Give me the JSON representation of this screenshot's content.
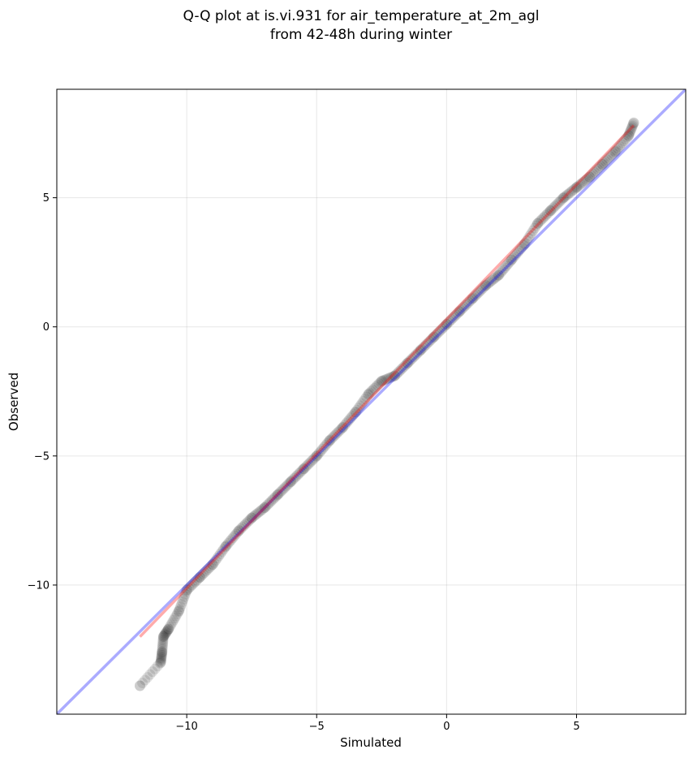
{
  "chart_data": {
    "type": "scatter",
    "title": "Q-Q plot at is.vi.931 for air_temperature_at_2m_agl",
    "subtitle": "from 42-48h during winter",
    "xlabel": "Simulated",
    "ylabel": "Observed",
    "xlim": [
      -15,
      9.2
    ],
    "ylim": [
      -15,
      9.2
    ],
    "x_ticks": [
      -10,
      -5,
      0,
      5
    ],
    "y_ticks": [
      -10,
      -5,
      0,
      5
    ],
    "x_tick_labels": [
      "−10",
      "−5",
      "0",
      "5"
    ],
    "y_tick_labels": [
      "−10",
      "−5",
      "0",
      "5"
    ],
    "grid": true,
    "quantile_anchors": {
      "x": [
        -11.8,
        -11.0,
        -10.95,
        -10.9,
        -10.7,
        -10.3,
        -10.0,
        -9.5,
        -9.0,
        -8.5,
        -8.0,
        -7.5,
        -7.0,
        -6.5,
        -6.0,
        -5.5,
        -5.0,
        -4.5,
        -4.0,
        -3.5,
        -3.0,
        -2.5,
        -2.0,
        -1.5,
        -1.0,
        -0.5,
        0.0,
        0.5,
        1.0,
        1.5,
        2.0,
        2.5,
        3.0,
        3.5,
        4.0,
        4.5,
        5.0,
        5.5,
        6.0,
        6.5,
        7.0,
        7.2
      ],
      "y": [
        -13.9,
        -13.0,
        -12.6,
        -12.0,
        -11.7,
        -11.0,
        -10.2,
        -9.7,
        -9.2,
        -8.5,
        -7.9,
        -7.4,
        -7.0,
        -6.5,
        -6.0,
        -5.5,
        -5.0,
        -4.4,
        -3.9,
        -3.3,
        -2.6,
        -2.1,
        -1.9,
        -1.4,
        -0.9,
        -0.4,
        0.1,
        0.6,
        1.1,
        1.6,
        2.0,
        2.6,
        3.2,
        4.0,
        4.5,
        5.0,
        5.4,
        5.8,
        6.3,
        6.8,
        7.4,
        7.9
      ]
    },
    "n_points": 340,
    "series": [
      {
        "kind": "points",
        "color": "#000000",
        "opacity": 0.1
      },
      {
        "kind": "identity_line",
        "color": "#0000ff",
        "opacity": 0.33
      },
      {
        "kind": "fit_line",
        "color": "#ff0000",
        "opacity": 0.33,
        "x": [
          -11.8,
          7.2
        ],
        "y": [
          -12.0,
          7.8
        ]
      }
    ]
  }
}
